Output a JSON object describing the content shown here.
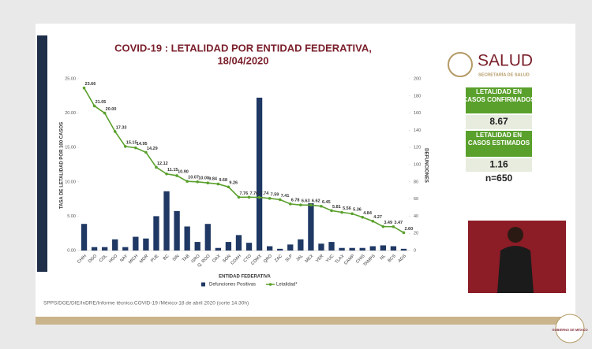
{
  "chart_data": {
    "type": "bar_line",
    "title": [
      "COVID-19 : LETALIDAD POR ENTIDAD FEDERATIVA,",
      "18/04/2020"
    ],
    "x_label": "ENTIDAD FEDERATIVA",
    "y_label": "TASA DE LETALIDAD POR 100 CASOS",
    "y2_label": "DEFUNCIONES",
    "categories": [
      "CHIH",
      "DGO",
      "COL",
      "HGO",
      "NAY",
      "MICH",
      "MOR",
      "PUE",
      "BC",
      "SIN",
      "TAB",
      "GRO",
      "Q. ROO",
      "OAX",
      "SON",
      "COAH",
      "CTO",
      "CDMX",
      "QRO",
      "ZAC",
      "SLP",
      "JAL",
      "MEX",
      "VER",
      "YUC",
      "TLAX",
      "CAMP",
      "CHIS",
      "TAMPS",
      "NL",
      "BCS",
      "AGS"
    ],
    "series": [
      {
        "name": "Defunciones Positivas",
        "type": "bar",
        "axis": "y2",
        "color": "#1f3864",
        "values": [
          31,
          4,
          4,
          13,
          4,
          16,
          14,
          40,
          69,
          46,
          28,
          10,
          31,
          3,
          10,
          18,
          9,
          178,
          5,
          2,
          7,
          13,
          55,
          8,
          10,
          3,
          3,
          3,
          5,
          6,
          5,
          2
        ]
      },
      {
        "name": "Letalidad*",
        "type": "line",
        "color": "#5aa02c",
        "values": [
          23.66,
          21.05,
          20,
          17.33,
          15.15,
          14.95,
          14.29,
          12.12,
          11.15,
          10.9,
          10.07,
          10,
          9.84,
          9.68,
          9.26,
          7.76,
          7.76,
          7.74,
          7.59,
          7.41,
          6.78,
          6.63,
          6.62,
          6.45,
          5.81,
          5.56,
          5.36,
          4.84,
          4.27,
          3.49,
          3.47,
          2.6
        ],
        "value_labels": [
          "23.66",
          "21.05",
          "20.00",
          "17.33",
          "15.15",
          "14.95",
          "14.29",
          "12.12",
          "11.15",
          "10.90",
          "10.07",
          "10.00",
          "9.84",
          "9.68",
          "9.26",
          "7.76",
          "7.76",
          "7.74",
          "7.59",
          "7.41",
          "6.78",
          "6.63",
          "6.62",
          "6.45",
          "5.81",
          "5.56",
          "5.36",
          "4.84",
          "4.27",
          "3.49",
          "3.47",
          "2.60"
        ]
      }
    ],
    "ylim": [
      0,
      25
    ],
    "yticks": [
      {
        "value": 0,
        "label": "0.00"
      },
      {
        "value": 5,
        "label": "5.00"
      },
      {
        "value": 10,
        "label": "10.00"
      },
      {
        "value": 15,
        "label": "15.00"
      },
      {
        "value": 20,
        "label": "20.00"
      },
      {
        "value": 25,
        "label": "25.00"
      }
    ],
    "y2lim": [
      0,
      200
    ],
    "y2ticks": [
      0,
      20,
      40,
      60,
      80,
      100,
      120,
      140,
      160,
      180,
      200
    ],
    "legend": "bottom",
    "source": "SPPS/DGE/DIE/InDRE/Informe técnico.COVID-19 /México-18 de abril 2020 (corte 14:30h)"
  },
  "panel": {
    "brand": "SALUD",
    "brand_sub": "SECRETARÍA DE SALUD",
    "box1_label": "LETALIDAD EN CASOS CONFIRMADOS",
    "box1_value": "8.67",
    "box2_label": "LETALIDAD EN CASOS ESTIMADOS",
    "box2_value": "1.16",
    "n": "n=650",
    "footer_logo": "GOBIERNO DE MÉXICO"
  }
}
